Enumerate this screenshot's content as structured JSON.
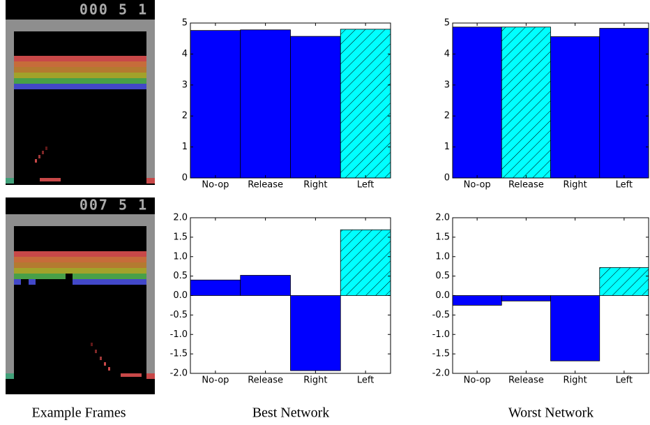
{
  "frames": [
    {
      "score": "000 5 1"
    },
    {
      "score": "007 5 1"
    }
  ],
  "captions": [
    "Example Frames",
    "Best Network",
    "Worst Network"
  ],
  "chart_data": [
    {
      "type": "bar",
      "categories": [
        "No-op",
        "Release",
        "Right",
        "Left"
      ],
      "values": [
        4.76,
        4.78,
        4.57,
        4.8
      ],
      "colors": [
        "#0000ff",
        "#0000ff",
        "#0000ff",
        "#00ffff"
      ],
      "hatch": [
        false,
        false,
        false,
        true
      ],
      "ylim": [
        0,
        5
      ],
      "yticks": [
        0,
        1,
        2,
        3,
        4,
        5
      ]
    },
    {
      "type": "bar",
      "categories": [
        "No-op",
        "Release",
        "Right",
        "Left"
      ],
      "values": [
        4.87,
        4.87,
        4.56,
        4.83
      ],
      "colors": [
        "#0000ff",
        "#00ffff",
        "#0000ff",
        "#0000ff"
      ],
      "hatch": [
        false,
        true,
        false,
        false
      ],
      "ylim": [
        0,
        5
      ],
      "yticks": [
        0,
        1,
        2,
        3,
        4,
        5
      ]
    },
    {
      "type": "bar",
      "categories": [
        "No-op",
        "Release",
        "Right",
        "Left"
      ],
      "values": [
        0.4,
        0.52,
        -1.93,
        1.69
      ],
      "colors": [
        "#0000ff",
        "#0000ff",
        "#0000ff",
        "#00ffff"
      ],
      "hatch": [
        false,
        false,
        false,
        true
      ],
      "ylim": [
        -2,
        2
      ],
      "yticks": [
        {
          "value": -2,
          "label": "-2.0"
        },
        {
          "value": -1.5,
          "label": "-1.5"
        },
        {
          "value": -1,
          "label": "-1.0"
        },
        {
          "value": -0.5,
          "label": "-0.5"
        },
        {
          "value": 0,
          "label": "0.0"
        },
        {
          "value": 0.5,
          "label": "0.5"
        },
        {
          "value": 1,
          "label": "1.0"
        },
        {
          "value": 1.5,
          "label": "1.5"
        },
        {
          "value": 2,
          "label": "2.0"
        }
      ]
    },
    {
      "type": "bar",
      "categories": [
        "No-op",
        "Release",
        "Right",
        "Left"
      ],
      "values": [
        -0.25,
        -0.14,
        -1.68,
        0.72
      ],
      "colors": [
        "#0000ff",
        "#0000ff",
        "#0000ff",
        "#00ffff"
      ],
      "hatch": [
        false,
        false,
        false,
        true
      ],
      "ylim": [
        -2,
        2
      ],
      "yticks": [
        {
          "value": -2,
          "label": "-2.0"
        },
        {
          "value": -1.5,
          "label": "-1.5"
        },
        {
          "value": -1,
          "label": "-1.0"
        },
        {
          "value": -0.5,
          "label": "-0.5"
        },
        {
          "value": 0,
          "label": "0.0"
        },
        {
          "value": 0.5,
          "label": "0.5"
        },
        {
          "value": 1,
          "label": "1.0"
        },
        {
          "value": 1.5,
          "label": "1.5"
        },
        {
          "value": 2,
          "label": "2.0"
        }
      ]
    }
  ]
}
